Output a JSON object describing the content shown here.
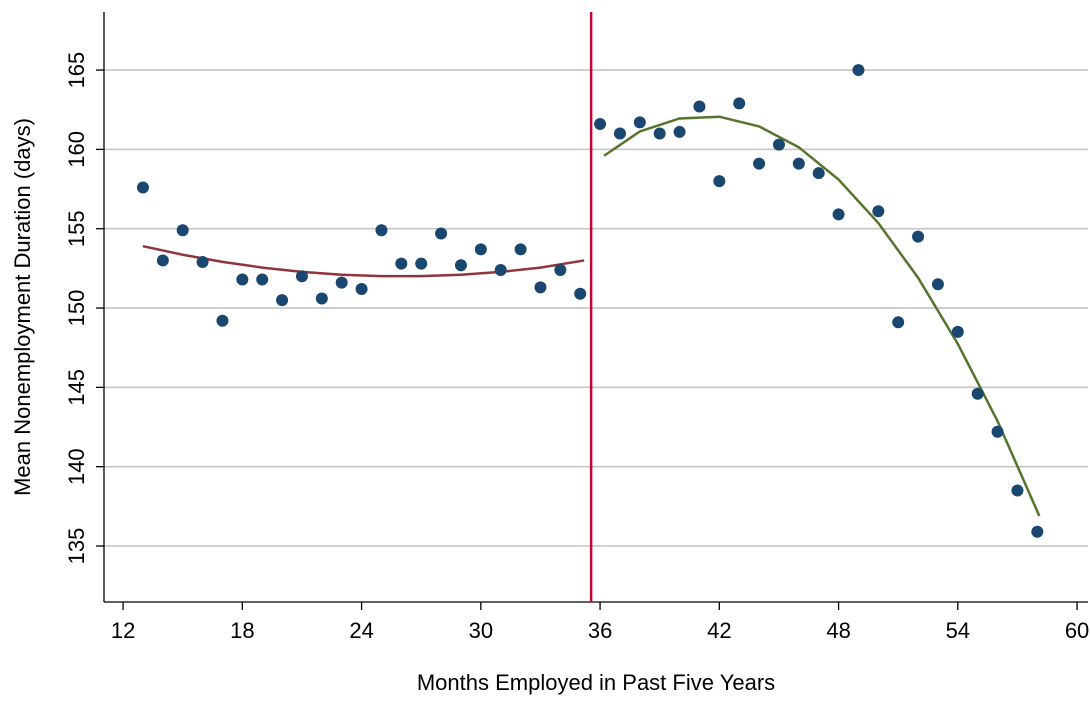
{
  "chart_data": {
    "type": "scatter",
    "x_label": "Months Employed in Past Five Years",
    "y_label": "Mean Nonemployment Duration (days)",
    "xlim": [
      11.04,
      60.55
    ],
    "ylim": [
      131.47,
      168.66
    ],
    "xticks": [
      12,
      18,
      24,
      30,
      36,
      42,
      48,
      54,
      60
    ],
    "yticks": [
      135,
      140,
      145,
      150,
      155,
      160,
      165
    ],
    "grid": true,
    "cutoff": 35.55,
    "cutoff_color": "#c10534",
    "series": [
      {
        "type": "scatter",
        "color": "#1a476f",
        "x": [
          13,
          14,
          15,
          16,
          17,
          18,
          19,
          20,
          21,
          22,
          23,
          24,
          25,
          26,
          27,
          28,
          29,
          30,
          31,
          32,
          33,
          34,
          35,
          36,
          37,
          38,
          39,
          40,
          41,
          42,
          43,
          44,
          45,
          46,
          47,
          48,
          49,
          50,
          51,
          52,
          53,
          54,
          55,
          56,
          57,
          58
        ],
        "values": [
          157.6,
          153.0,
          154.9,
          152.9,
          149.2,
          151.8,
          151.8,
          150.5,
          152.0,
          150.6,
          151.6,
          151.2,
          154.9,
          152.8,
          152.8,
          154.7,
          152.7,
          153.7,
          152.4,
          153.7,
          151.3,
          152.4,
          150.9,
          161.6,
          161.0,
          161.7,
          161.0,
          161.1,
          162.7,
          158.0,
          162.9,
          159.1,
          160.3,
          159.1,
          158.5,
          155.9,
          165.0,
          156.1,
          149.1,
          154.5,
          151.5,
          148.5,
          144.6,
          142.2,
          138.5,
          135.9
        ]
      },
      {
        "type": "line",
        "color": "#90353b",
        "x": [
          13,
          15,
          17,
          19,
          21,
          23,
          25,
          27,
          29,
          31,
          33,
          35.2
        ],
        "values": [
          153.9,
          153.36,
          152.91,
          152.55,
          152.28,
          152.1,
          152.01,
          152.01,
          152.1,
          152.28,
          152.55,
          153.0
        ]
      },
      {
        "type": "line",
        "color": "#55752f",
        "x": [
          36.2,
          38,
          40,
          42,
          44,
          46,
          48,
          50,
          52,
          54,
          56,
          58.1
        ],
        "values": [
          159.6,
          161.13,
          161.95,
          162.06,
          161.45,
          160.13,
          158.1,
          155.36,
          151.91,
          147.74,
          142.87,
          136.9
        ]
      }
    ]
  }
}
